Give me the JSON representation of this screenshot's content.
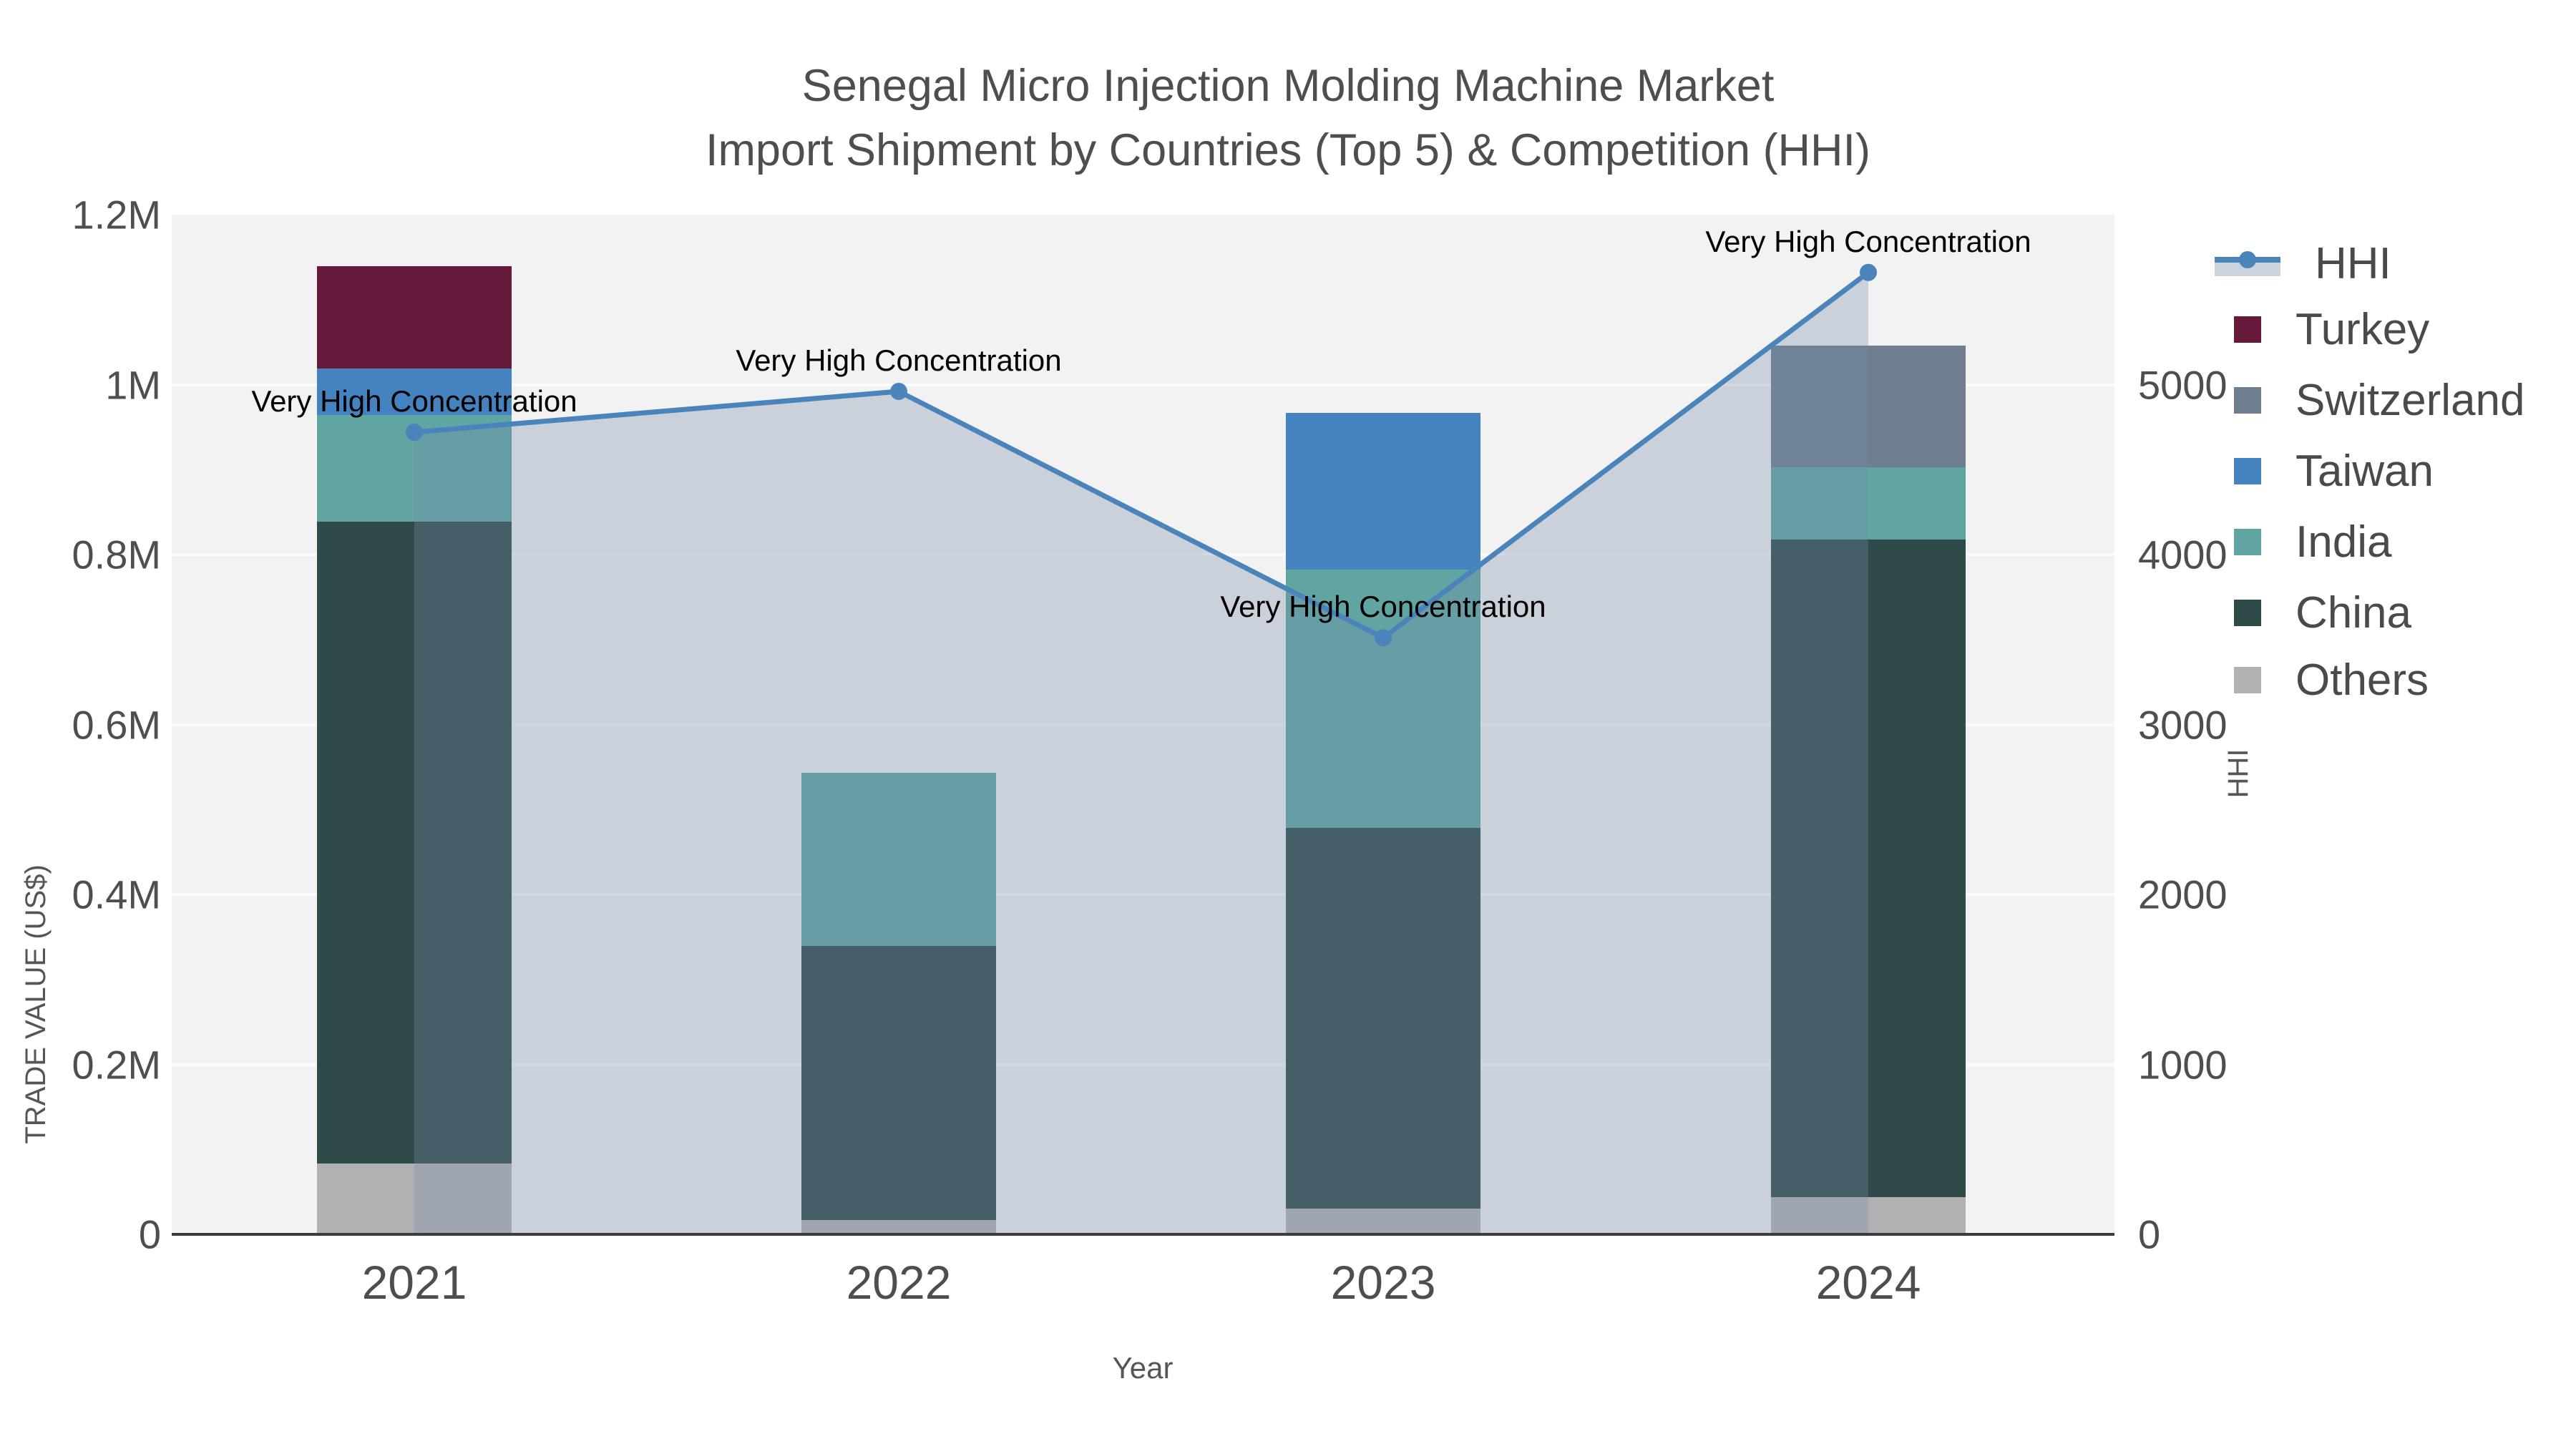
{
  "title": {
    "line1": "Senegal Micro Injection Molding Machine Market",
    "line2": "Import Shipment by Countries (Top 5) & Competition (HHI)"
  },
  "axes": {
    "x_label": "Year",
    "y_left_label": "TRADE VALUE (US$)",
    "y_right_label": "HHI",
    "y_left_ticks": [
      "0",
      "0.2M",
      "0.4M",
      "0.6M",
      "0.8M",
      "1M",
      "1.2M"
    ],
    "y_right_ticks": [
      "0",
      "1000",
      "2000",
      "3000",
      "4000",
      "5000"
    ]
  },
  "annotation_text": "Very High Concentration",
  "legend": [
    {
      "label": "HHI",
      "color": "#4a84ba",
      "type": "line"
    },
    {
      "label": "Turkey",
      "color": "#66193a",
      "type": "box"
    },
    {
      "label": "Switzerland",
      "color": "#6e7e90",
      "type": "box"
    },
    {
      "label": "Taiwan",
      "color": "#4483bf",
      "type": "box"
    },
    {
      "label": "India",
      "color": "#60a5a2",
      "type": "box"
    },
    {
      "label": "China",
      "color": "#2e4a49",
      "type": "box"
    },
    {
      "label": "Others",
      "color": "#b1b1b1",
      "type": "box"
    }
  ],
  "colors": {
    "panel_bg": "#f2f2f2",
    "grid": "#fbfbfb",
    "axis_line": "#3c3c3c",
    "hhi_line": "#4a84ba",
    "hhi_area_fill": "rgba(118,140,172,0.32)",
    "text": "#4e4e4e",
    "annotation": "#000000"
  },
  "chart_data": {
    "type": "bar",
    "subtype": "stacked bars with secondary-axis line+area (HHI)",
    "title": "Senegal Micro Injection Molding Machine Market — Import Shipment by Countries (Top 5) & Competition (HHI)",
    "xlabel": "Year",
    "ylabel_left": "TRADE VALUE (US$)",
    "ylabel_right": "HHI",
    "categories": [
      "2021",
      "2022",
      "2023",
      "2024"
    ],
    "series": [
      {
        "name": "Others",
        "color": "#b1b1b1",
        "values": [
          83000,
          17000,
          30000,
          44000
        ]
      },
      {
        "name": "China",
        "color": "#2e4a49",
        "values": [
          756000,
          322000,
          448000,
          774000
        ]
      },
      {
        "name": "India",
        "color": "#60a5a2",
        "values": [
          125000,
          204000,
          304000,
          85000
        ]
      },
      {
        "name": "Taiwan",
        "color": "#4483bf",
        "values": [
          55000,
          0,
          185000,
          0
        ]
      },
      {
        "name": "Switzerland",
        "color": "#6e7e90",
        "values": [
          0,
          0,
          0,
          143000
        ]
      },
      {
        "name": "Turkey",
        "color": "#66193a",
        "values": [
          120000,
          0,
          0,
          0
        ]
      }
    ],
    "bar_totals": [
      1139000,
      543000,
      967000,
      1046000
    ],
    "hhi_series": {
      "name": "HHI",
      "color": "#4a84ba",
      "values": [
        4720,
        4960,
        3510,
        5660
      ]
    },
    "point_annotations": [
      "Very High Concentration",
      "Very High Concentration",
      "Very High Concentration",
      "Very High Concentration"
    ],
    "ylim_left": [
      0,
      1200000
    ],
    "ylim_right": [
      0,
      6000
    ],
    "grid": true,
    "legend_position": "right"
  }
}
